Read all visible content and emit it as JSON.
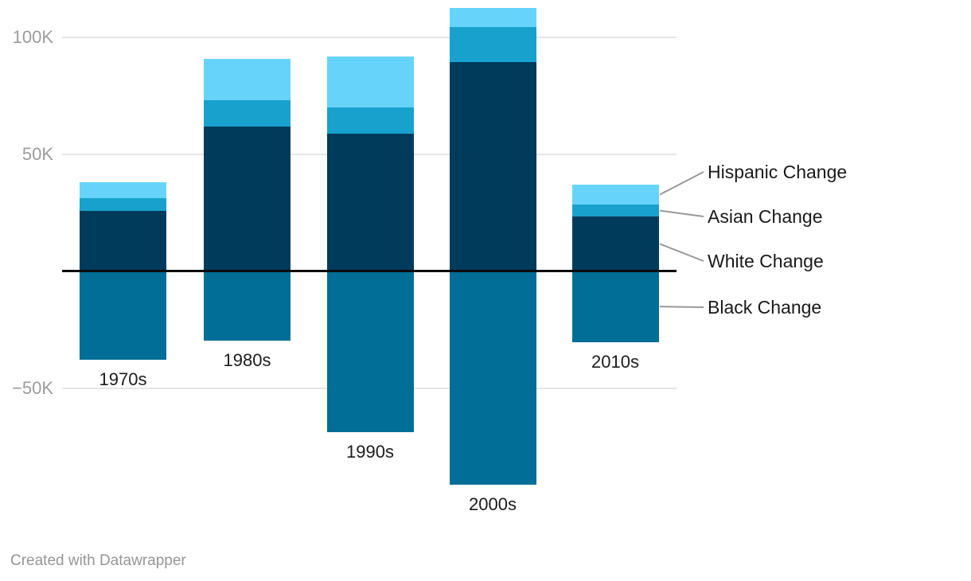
{
  "chart_data": {
    "type": "bar",
    "subtype": "stacked-column",
    "title": "",
    "xlabel": "",
    "ylabel": "",
    "categories": [
      "1970s",
      "1980s",
      "1990s",
      "2000s",
      "2010s"
    ],
    "series": [
      {
        "name": "Hispanic Change",
        "color": "#66d4fa",
        "values": [
          6800,
          17700,
          21900,
          8300,
          8500
        ]
      },
      {
        "name": "Asian Change",
        "color": "#18a1cd",
        "values": [
          5300,
          11300,
          11100,
          14800,
          5200
        ]
      },
      {
        "name": "White Change",
        "color": "#003b5c",
        "values": [
          25700,
          61700,
          58800,
          89400,
          23200
        ]
      },
      {
        "name": "Black Change",
        "color": "#006e96",
        "values": [
          -37800,
          -29700,
          -69000,
          -91400,
          -30400
        ]
      }
    ],
    "y_axis": {
      "ticks": [
        {
          "label": "100K",
          "value": 100000
        },
        {
          "label": "50K",
          "value": 50000
        },
        {
          "label": "−50K",
          "value": -50000
        }
      ],
      "zero_baseline": true,
      "approx_range": [
        -100000,
        115000
      ]
    },
    "grid": true,
    "legend_position": "right-annotations",
    "legend_items": [
      "Hispanic Change",
      "Asian Change",
      "White Change",
      "Black Change"
    ]
  },
  "colors": {
    "hispanic": "#66d4fa",
    "asian": "#18a1cd",
    "white": "#003b5c",
    "black": "#006e96",
    "gridline": "#e6e6e6",
    "zero_line": "#0b0b0b",
    "tick_text": "#9c9c9c",
    "label_text": "#1c1c1c",
    "connector": "#999999",
    "credit_text": "#969696"
  },
  "footer": {
    "credit": "Created with Datawrapper"
  }
}
